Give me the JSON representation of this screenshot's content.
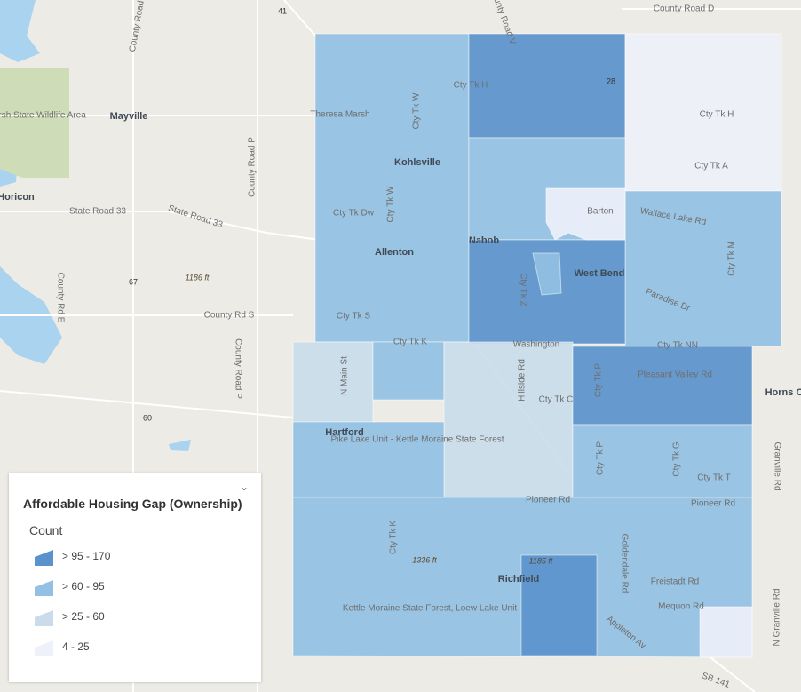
{
  "legend": {
    "title": "Affordable Housing Gap (Ownership)",
    "subtitle": "Count",
    "items": [
      {
        "label": "> 95 - 170",
        "color": "#5a92cc"
      },
      {
        "label": "> 60 - 95",
        "color": "#93c0e3"
      },
      {
        "label": "> 25 - 60",
        "color": "#cadcec"
      },
      {
        "label": "4 - 25",
        "color": "#eef0fa"
      }
    ]
  },
  "labels": [
    "County Road D",
    "County Road V",
    "41",
    "28",
    "County Road Y",
    "Mayville",
    "Horicon Marsh State Wildlife Area",
    "Horicon",
    "State Road 33",
    "State Road 33",
    "County Road P",
    "67",
    "1186 ft",
    "County Rd E",
    "County Rd S",
    "County Road P",
    "60",
    "Cty Tk H",
    "Theresa Marsh",
    "Cty Tk W",
    "Kohlsville",
    "Cty Tk W",
    "Cty Tk Dw",
    "Allenton",
    "Cty Tk S",
    "Cty Tk H",
    "Cty Tk A",
    "Barton",
    "Wallace Lake Rd",
    "Nabob",
    "Cty Tk Z",
    "West Bend",
    "Paradise Dr",
    "Cty Tk M",
    "Cty Tk K",
    "Washington",
    "Cty Tk NN",
    "N Main St",
    "Hillside Rd",
    "Cty Tk P",
    "Pleasant Valley Rd",
    "Horns C",
    "Cty Tk C",
    "Hartford",
    "Pike Lake Unit - Kettle Moraine State Forest",
    "Cty Tk P",
    "Cty Tk G",
    "Cty Tk T",
    "Granville Rd",
    "Pioneer Rd",
    "Pioneer Rd",
    "Cty Tk K",
    "1336 ft",
    "1185 ft",
    "Richfield",
    "Goldendale Rd",
    "Freistadt Rd",
    "Mequon Rd",
    "Kettle Moraine State Forest, Loew Lake Unit",
    "Appleton Av",
    "N Granville Rd",
    "SB 141"
  ]
}
